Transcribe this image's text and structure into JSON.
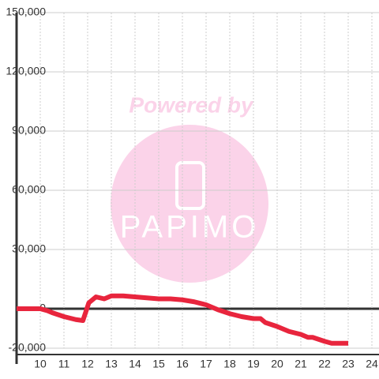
{
  "chart_data": {
    "type": "line",
    "watermark": [
      "Powered by",
      "PAPIMO"
    ],
    "x": [
      9,
      10,
      10.3,
      10.5,
      11,
      11.5,
      11.8,
      12.05,
      12.35,
      12.7,
      13,
      13.5,
      14,
      14.5,
      15,
      15.5,
      16,
      16.5,
      17,
      17.5,
      18,
      18.5,
      19,
      19.3,
      19.5,
      20,
      20.5,
      21,
      21.3,
      21.5,
      22,
      22.3,
      23
    ],
    "series": [
      {
        "color": "#e8253d",
        "values": [
          0,
          0,
          -1000,
          -2000,
          -4000,
          -5500,
          -6000,
          3000,
          6000,
          5000,
          6500,
          6500,
          6000,
          5500,
          5000,
          5000,
          4500,
          3500,
          2000,
          -500,
          -2500,
          -4000,
          -5000,
          -5000,
          -7000,
          -9000,
          -11500,
          -13000,
          -14500,
          -14500,
          -16500,
          -17500,
          -17500
        ]
      }
    ],
    "xlim": [
      9,
      24.3
    ],
    "xticks": [
      10,
      11,
      12,
      13,
      14,
      15,
      16,
      17,
      18,
      19,
      20,
      21,
      22,
      23,
      24
    ],
    "ylim": [
      -20000,
      150000
    ],
    "yticks": [
      {
        "value": -20000,
        "label": "-20,000"
      },
      0,
      {
        "value": 30000,
        "label": "30,000"
      },
      {
        "value": 60000,
        "label": "60,000"
      },
      {
        "value": 90000,
        "label": "90,000"
      },
      {
        "value": 120000,
        "label": "120,000"
      },
      {
        "value": 150000,
        "label": "150,000"
      }
    ],
    "grid": true
  }
}
